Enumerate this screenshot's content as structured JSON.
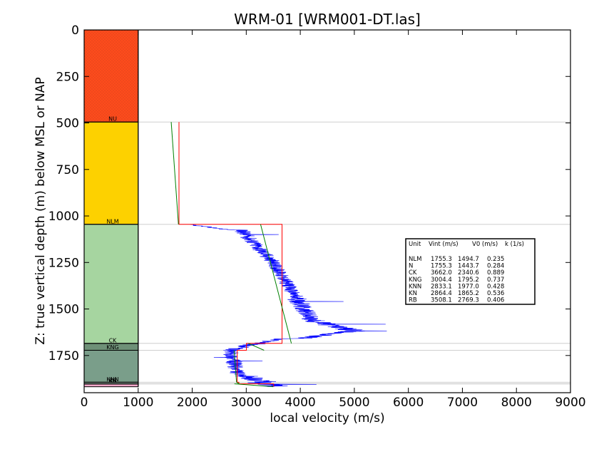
{
  "chart_data": {
    "type": "line",
    "title": "WRM-01 [WRM001-DT.las]",
    "xlabel": "local velocity (m/s)",
    "ylabel": "Z: true vertical depth (m) below MSL or NAP",
    "xlim": [
      0,
      9000
    ],
    "ylim": [
      1950,
      0
    ],
    "y_inverted": true,
    "x_ticks": [
      "0",
      "1000",
      "2000",
      "3000",
      "4000",
      "5000",
      "6000",
      "7000",
      "8000",
      "9000"
    ],
    "y_ticks": [
      "0",
      "250",
      "500",
      "750",
      "1000",
      "1250",
      "1500",
      "1750"
    ],
    "x_tick_values": [
      0,
      1000,
      2000,
      3000,
      4000,
      5000,
      6000,
      7000,
      8000,
      9000
    ],
    "y_tick_values": [
      0,
      250,
      500,
      750,
      1000,
      1250,
      1500,
      1750
    ],
    "grid": false,
    "colors": {
      "log": "#0000ff",
      "interval_velocity": "#ff0000",
      "linear_model": "#008000",
      "top_line": "#c8c8c8"
    },
    "formations": [
      {
        "name": "",
        "top": 0,
        "base": 495,
        "color": "#fd4c1c",
        "dotted": true
      },
      {
        "name": "NU",
        "top": 495,
        "base": 1045,
        "color": "#fdd100",
        "dotted": false
      },
      {
        "name": "NLM",
        "top": 1045,
        "base": 1685,
        "color": "#a6d5a0",
        "dotted": false
      },
      {
        "name": "CK",
        "top": 1685,
        "base": 1722,
        "color": "#6e9077",
        "dotted": false
      },
      {
        "name": "KNG",
        "top": 1722,
        "base": 1894,
        "color": "#7a9e8a",
        "dotted": false
      },
      {
        "name": "KNN",
        "top": 1894,
        "base": 1902,
        "color": "#9eb8a8",
        "dotted": false
      },
      {
        "name": "KN",
        "top": 1902,
        "base": 1903,
        "color": "#c0c0c0",
        "dotted": false
      },
      {
        "name": "RB",
        "top": 1903,
        "base": 1918,
        "color": "#f0a8c8",
        "dotted": false
      }
    ],
    "series": [
      {
        "kind": "sonic-log",
        "segments": [
          {
            "top": 1045,
            "base": 1075,
            "start": 1900,
            "end": 2700,
            "jitter": 80
          },
          {
            "top": 1075,
            "base": 1250,
            "start": 2900,
            "end": 3500,
            "jitter": 150
          },
          {
            "top": 1250,
            "base": 1340,
            "start": 3500,
            "end": 3700,
            "jitter": 130
          },
          {
            "top": 1340,
            "base": 1430,
            "start": 3700,
            "end": 3900,
            "jitter": 140
          },
          {
            "top": 1430,
            "base": 1560,
            "start": 3900,
            "end": 4200,
            "jitter": 180
          },
          {
            "top": 1560,
            "base": 1620,
            "start": 4200,
            "end": 5000,
            "jitter": 220
          },
          {
            "top": 1620,
            "base": 1660,
            "start": 4900,
            "end": 4000,
            "jitter": 200
          },
          {
            "top": 1660,
            "base": 1690,
            "start": 3600,
            "end": 3200,
            "jitter": 150
          },
          {
            "top": 1690,
            "base": 1722,
            "start": 3100,
            "end": 2700,
            "jitter": 150
          },
          {
            "top": 1722,
            "base": 1860,
            "start": 2700,
            "end": 2850,
            "jitter": 150
          },
          {
            "top": 1860,
            "base": 1894,
            "start": 3000,
            "end": 3300,
            "jitter": 220
          },
          {
            "top": 1894,
            "base": 1918,
            "start": 3300,
            "end": 3600,
            "jitter": 300
          }
        ],
        "spikes": [
          [
            1582,
            5580
          ],
          [
            1618,
            5600
          ],
          [
            1583,
            4600
          ],
          [
            1611,
            5150
          ],
          [
            1100,
            3600
          ],
          [
            1460,
            4800
          ],
          [
            1890,
            3550
          ],
          [
            1905,
            4300
          ],
          [
            1760,
            2400
          ],
          [
            1810,
            2650
          ],
          [
            1780,
            3300
          ]
        ]
      },
      {
        "kind": "interval-velocity",
        "points": [
          [
            1755,
            495
          ],
          [
            1755,
            1045
          ],
          [
            3662,
            1045
          ],
          [
            3662,
            1685
          ],
          [
            3004,
            1685
          ],
          [
            3004,
            1722
          ],
          [
            2833,
            1722
          ],
          [
            2833,
            1894
          ],
          [
            2864,
            1894
          ],
          [
            2864,
            1902
          ],
          [
            3508,
            1902
          ],
          [
            3508,
            1918
          ]
        ]
      },
      {
        "kind": "linear-model",
        "segments": [
          [
            [
              1611,
              495
            ],
            [
              1745,
              1045
            ]
          ],
          [
            [
              3265,
              1045
            ],
            [
              3835,
              1685
            ]
          ],
          [
            [
              3040,
              1685
            ],
            [
              3330,
              1722
            ]
          ],
          [
            [
              2775,
              1722
            ],
            [
              2820,
              1894
            ]
          ],
          [
            [
              2820,
              1894
            ],
            [
              2870,
              1902
            ]
          ],
          [
            [
              2780,
              1902
            ],
            [
              3500,
              1918
            ]
          ]
        ]
      }
    ],
    "table": {
      "header": [
        "Unit",
        "Vint (m/s)",
        "V0 (m/s)",
        "k (1/s)"
      ],
      "rows": [
        [
          "NLM",
          "1755.3",
          "1494.7",
          "0.235"
        ],
        [
          "N",
          "1755.3",
          "1443.7",
          "0.284"
        ],
        [
          "CK",
          "3662.0",
          "2340.6",
          "0.889"
        ],
        [
          "KNG",
          "3004.4",
          "1795.2",
          "0.737"
        ],
        [
          "KNN",
          "2833.1",
          "1977.0",
          "0.428"
        ],
        [
          "KN",
          "2864.4",
          "1865.2",
          "0.536"
        ],
        [
          "RB",
          "3508.1",
          "2769.3",
          "0.406"
        ]
      ]
    }
  }
}
